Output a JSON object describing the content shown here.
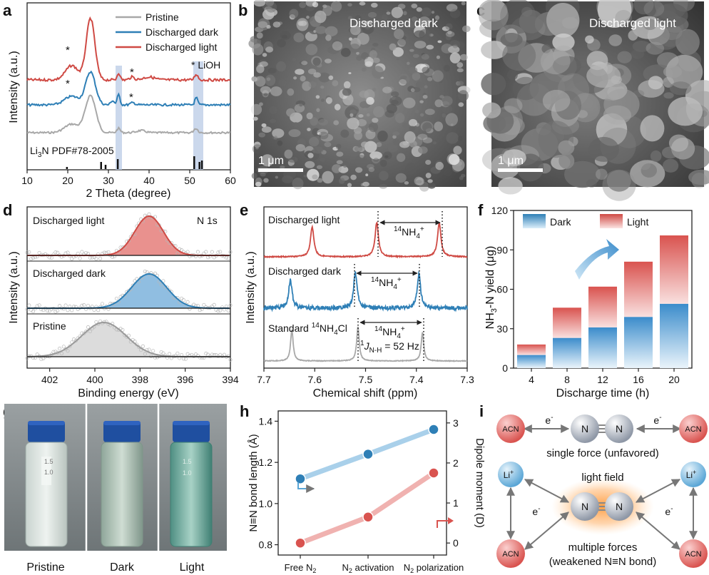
{
  "panels": {
    "a": {
      "letter": "a",
      "legend": [
        "Pristine",
        "Discharged dark",
        "Discharged light"
      ],
      "colors": [
        "#a8a8a8",
        "#2e7fb6",
        "#cf4a44"
      ],
      "star": "*",
      "lioh_label": "* LiOH",
      "ref_label_pre": "Li",
      "ref_label_sub": "3",
      "ref_label_post": "N PDF#78-2005",
      "xlabel": "2 Theta (degree)",
      "ylabel": "Intensity (a.u.)",
      "xticks": [
        "10",
        "20",
        "30",
        "40",
        "50",
        "60"
      ]
    },
    "b": {
      "letter": "b",
      "title": "Discharged dark",
      "scale": "1 μm"
    },
    "c": {
      "letter": "c",
      "title": "Discharged light",
      "scale": "1 μm"
    },
    "d": {
      "letter": "d",
      "core": "N 1s",
      "labels": [
        "Discharged light",
        "Discharged dark",
        "Pristine"
      ],
      "xlabel": "Binding energy (eV)",
      "ylabel": "Intensity (a.u.)",
      "xticks": [
        "402",
        "400",
        "398",
        "396",
        "394"
      ]
    },
    "e": {
      "letter": "e",
      "labels": [
        "Discharged light",
        "Discharged dark"
      ],
      "std_pre": "Standard ",
      "std_sup": "14",
      "std_post": "NH",
      "std_sub": "4",
      "std_tail": "Cl",
      "nh4_sup": "14",
      "nh4_main": "NH",
      "nh4_sub": "4",
      "nh4_plus": "+",
      "j_main": "J",
      "j_sub": "N-H",
      "j_value": " = 52 Hz",
      "j_one": "1",
      "xlabel": "Chemical shift (ppm)",
      "ylabel": "Intensity (a.u.)",
      "xticks": [
        "7.7",
        "7.6",
        "7.5",
        "7.4",
        "7.3"
      ]
    },
    "g": {
      "letter": "g",
      "labels": [
        "Pristine",
        "Dark",
        "Light"
      ],
      "ticks": [
        "1.5",
        "1.0"
      ]
    },
    "h": {
      "letter": "h",
      "ylabel_left": "N≡N bond length (Å)",
      "ylabel_right": "Dipole moment (D)",
      "yticks_left": [
        "0.8",
        "1.0",
        "1.2",
        "1.4"
      ],
      "yticks_right": [
        "0",
        "1",
        "2",
        "3"
      ],
      "cat1": "Free N",
      "cat_sub": "2",
      "cat2_pre": "N",
      "cat2_post": " activation",
      "cat3_pre": "N",
      "cat3_post": " polarization"
    },
    "i": {
      "letter": "i",
      "acn": "ACN",
      "n": "N",
      "li": "Li",
      "li_sup": "+",
      "electron": "e",
      "electron_sup": "-",
      "single": "single force (unfavored)",
      "light_field": "light field",
      "multiple": "multiple forces",
      "weakened": "(weakened N≡N bond)"
    }
  },
  "chart_data": [
    {
      "panel": "f",
      "letter": "f",
      "type": "bar",
      "stacked": true,
      "categories": [
        "4",
        "8",
        "12",
        "16",
        "20"
      ],
      "series": [
        {
          "name": "Dark",
          "values": [
            10,
            23,
            31,
            39,
            49
          ],
          "color": "#3b8ccb"
        },
        {
          "name": "Light",
          "values": [
            8,
            23,
            31,
            42,
            52
          ],
          "color": "#d9534f"
        }
      ],
      "xlabel": "Discharge time (h)",
      "ylabel_pre": "NH",
      "ylabel_sub": "3",
      "ylabel_post": "-N yield (μg)",
      "ylim": [
        0,
        120
      ],
      "yticks": [
        0,
        30,
        60,
        90,
        120
      ],
      "legend": "top-left"
    },
    {
      "panel": "h",
      "type": "line",
      "categories": [
        "Free N2",
        "N2 activation",
        "N2 polarization"
      ],
      "series": [
        {
          "axis": "left",
          "values": [
            1.12,
            1.24,
            1.36
          ],
          "color": "#5aa6d6",
          "ylim": [
            0.8,
            1.4
          ]
        },
        {
          "axis": "right",
          "values": [
            0.0,
            0.65,
            1.75
          ],
          "color": "#d9534f",
          "ylim": [
            0,
            3
          ]
        }
      ]
    }
  ]
}
